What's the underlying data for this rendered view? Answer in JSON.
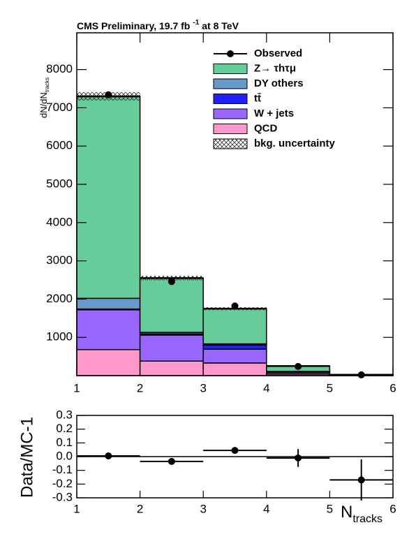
{
  "chart_data": [
    {
      "type": "stacked_histogram",
      "title": [
        "CMS Preliminary,  19.7 fb",
        "-1",
        "at 8 TeV"
      ],
      "ylabel": [
        "dN/dN",
        "tracks"
      ],
      "bins": [
        1,
        2,
        3,
        4,
        5,
        6
      ],
      "xlim": [
        1,
        6
      ],
      "xticks": [
        1,
        2,
        3,
        4,
        5,
        6
      ],
      "ylim": [
        0,
        8960
      ],
      "yticks": [
        1000,
        2000,
        3000,
        4000,
        5000,
        6000,
        7000,
        8000
      ],
      "series": [
        {
          "name": "QCD",
          "color": "#ff99cc",
          "values": [
            680,
            380,
            330,
            40,
            3
          ]
        },
        {
          "name": "W + jets",
          "color": "#9966ff",
          "values": [
            1040,
            680,
            360,
            40,
            5
          ]
        },
        {
          "name": "tt̄",
          "color": "#1f1fff",
          "values": [
            20,
            30,
            110,
            20,
            3
          ]
        },
        {
          "name": "DY others",
          "color": "#6699cc",
          "values": [
            280,
            40,
            30,
            10,
            1
          ]
        },
        {
          "name": "Z→ τhτμ",
          "color": "#66cc99",
          "values": [
            5280,
            1420,
            920,
            140,
            10
          ]
        }
      ],
      "observed": {
        "name": "Observed",
        "color": "#000000",
        "values": [
          7340,
          2460,
          1820,
          240,
          20
        ]
      },
      "uncertainty": {
        "name": "bkg. uncertainty",
        "values": [
          110,
          60,
          40,
          15,
          5
        ]
      }
    },
    {
      "type": "errorbar",
      "ylabel": "Data/MC-1",
      "xlabel": [
        "N",
        "tracks"
      ],
      "x": [
        1.5,
        2.5,
        3.5,
        4.5,
        5.5
      ],
      "xerr": [
        0.5,
        0.5,
        0.5,
        0.5,
        0.5
      ],
      "values": [
        0.005,
        -0.035,
        0.045,
        -0.01,
        -0.17
      ],
      "errors": [
        0.01,
        0.01,
        0.015,
        0.065,
        0.15
      ],
      "color": "#000000",
      "xlim": [
        1,
        6
      ],
      "xticks": [
        1,
        2,
        3,
        4,
        5,
        6
      ],
      "ylim": [
        -0.3,
        0.3
      ],
      "yticks": [
        -0.3,
        -0.2,
        -0.1,
        {
          "value": 0,
          "label": "0.0"
        },
        0.1,
        0.2,
        0.3
      ]
    }
  ]
}
